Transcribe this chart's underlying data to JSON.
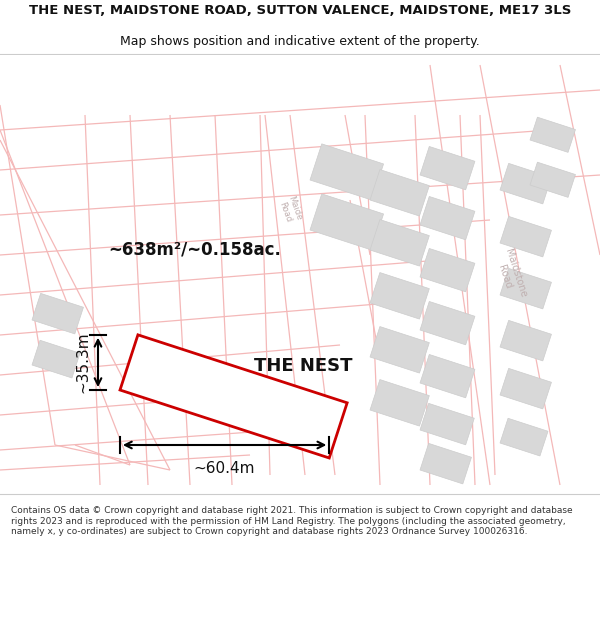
{
  "title_line1": "THE NEST, MAIDSTONE ROAD, SUTTON VALENCE, MAIDSTONE, ME17 3LS",
  "title_line2": "Map shows position and indicative extent of the property.",
  "footer_text": "Contains OS data © Crown copyright and database right 2021. This information is subject to Crown copyright and database rights 2023 and is reproduced with the permission of HM Land Registry. The polygons (including the associated geometry, namely x, y co-ordinates) are subject to Crown copyright and database rights 2023 Ordnance Survey 100026316.",
  "area_label": "~638m²/~0.158ac.",
  "property_name": "THE NEST",
  "width_label": "~60.4m",
  "height_label": "~35.3m",
  "bg_color": "#ffffff",
  "road_pink": "#f4b8b8",
  "building_fill": "#d8d8d8",
  "building_edge": "#cccccc",
  "property_color": "#cc0000",
  "text_dark": "#111111",
  "text_gray": "#aaaaaa",
  "separator_color": "#cccccc"
}
